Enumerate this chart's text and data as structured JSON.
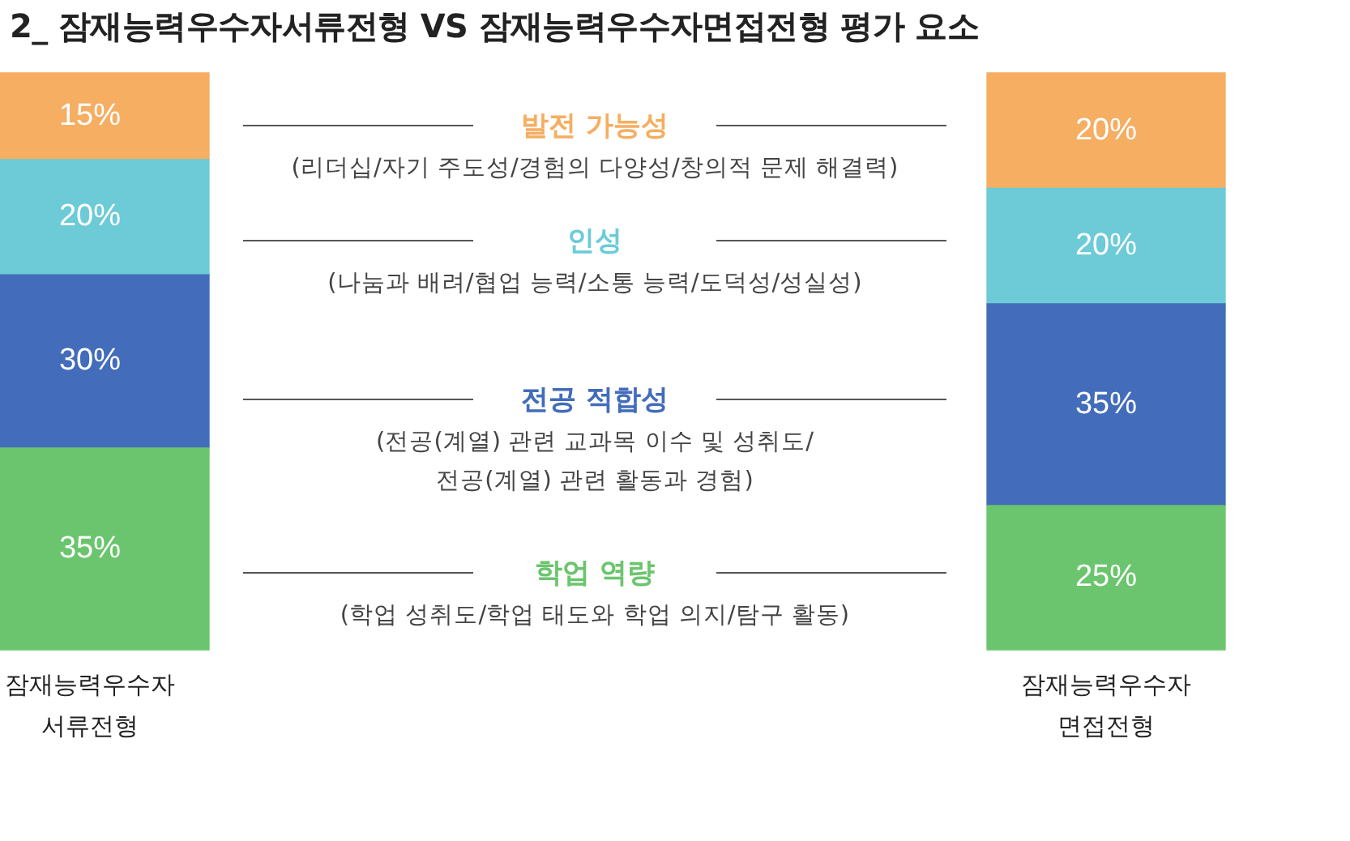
{
  "chart_data": {
    "type": "bar",
    "title": "2_ 잠재능력우수자서류전형 VS 잠재능력우수자면접전형 평가 요소",
    "categories": [
      "잠재능력우수자\n서류전형",
      "잠재능력우수자\n면접전형"
    ],
    "stacked": true,
    "ylim": [
      0,
      100
    ],
    "tick_labels": "x",
    "grid": false,
    "legend": false,
    "series": [
      {
        "name": "학업 역량",
        "color": "#6bc56e",
        "values": [
          35,
          25
        ],
        "value_labels": [
          "35%",
          "25%"
        ]
      },
      {
        "name": "전공 적합성",
        "color": "#436cbb",
        "values": [
          30,
          35
        ],
        "value_labels": [
          "30%",
          "35%"
        ]
      },
      {
        "name": "인성",
        "color": "#6ccbd6",
        "values": [
          20,
          20
        ],
        "value_labels": [
          "20%",
          "20%"
        ]
      },
      {
        "name": "발전 가능성",
        "color": "#f5ae62",
        "values": [
          15,
          20
        ],
        "value_labels": [
          "15%",
          "20%"
        ]
      }
    ],
    "annotations": [
      "(학업 성취도/학업 태도와 학업 의지/탐구 활동)",
      "(전공(계열) 관련 교과목 이수 및 성취도/\n전공(계열) 관련 활동과 경험)",
      "(나눔과 배려/협업 능력/소통 능력/도덕성/성실성)",
      "(리더십/자기 주도성/경험의 다양성/창의적 문제 해결력)"
    ]
  }
}
